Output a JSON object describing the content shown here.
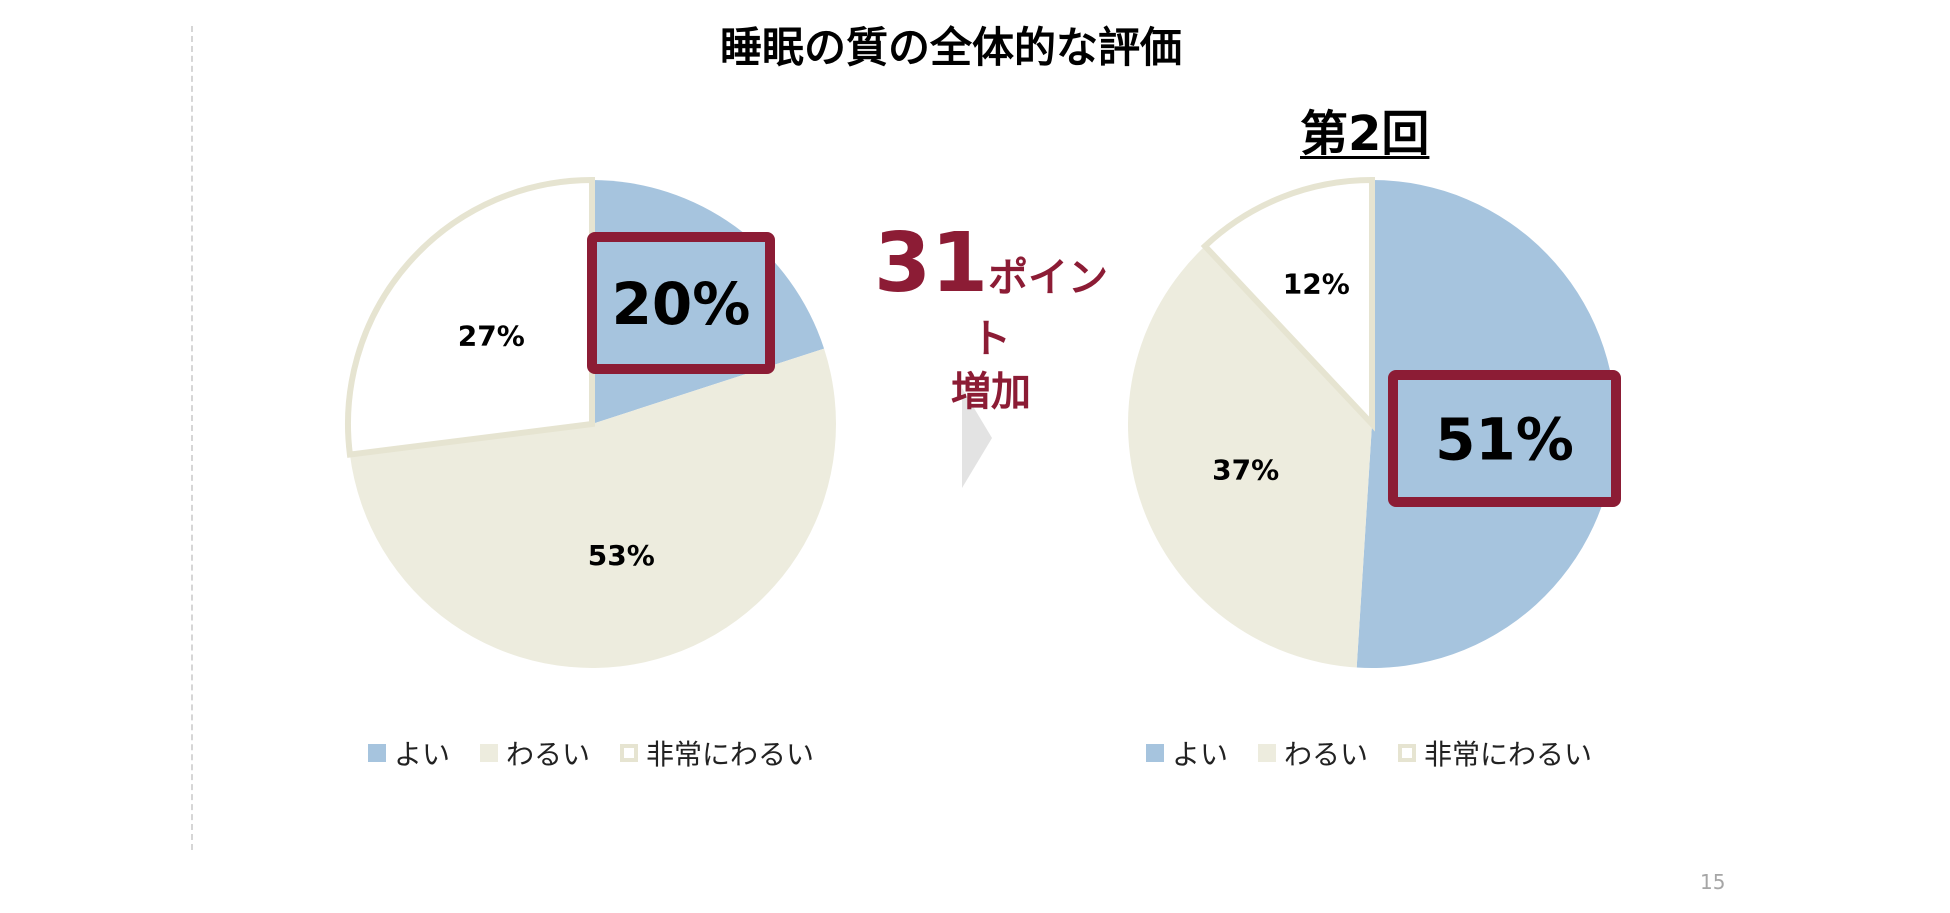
{
  "title": "睡眠の質の全体的な評価",
  "colors": {
    "good": "#a6c4de",
    "bad": "#edecde",
    "very_bad": "#ffffff",
    "very_bad_border": "#e6e4d1",
    "accent": "#8c1c35"
  },
  "chart_data": [
    {
      "type": "pie",
      "title": "",
      "categories": [
        "よい",
        "わるい",
        "非常にわるい"
      ],
      "values": [
        20,
        53,
        27
      ],
      "labels": [
        "20%",
        "53%",
        "27%"
      ],
      "legend": "bottom"
    },
    {
      "type": "pie",
      "title": "第2回",
      "categories": [
        "よい",
        "わるい",
        "非常にわるい"
      ],
      "values": [
        51,
        37,
        12
      ],
      "labels": [
        "51%",
        "37%",
        "12%"
      ],
      "legend": "bottom"
    }
  ],
  "callout": {
    "number": "31",
    "unit": "ポイント",
    "text": "増加"
  },
  "page_number": "15"
}
